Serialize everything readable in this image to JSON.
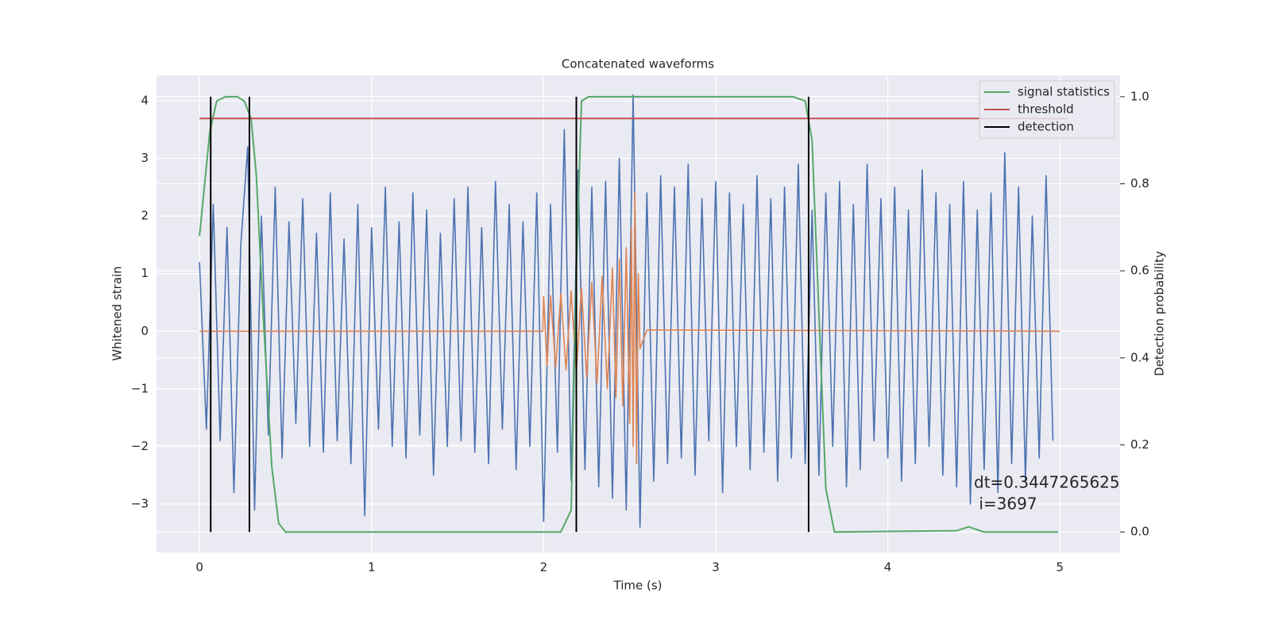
{
  "chart_data": {
    "type": "line",
    "title": "Concatenated waveforms",
    "xlabel": "Time (s)",
    "ylabel": "Whitened strain",
    "y2label": "Detection probability",
    "xlim": [
      -0.25,
      5.35
    ],
    "ylim": [
      -3.84,
      4.44
    ],
    "y2lim": [
      -0.047,
      1.049
    ],
    "xticks": [
      0,
      1,
      2,
      3,
      4,
      5
    ],
    "yticks": [
      {
        "value": -3,
        "label": "−3"
      },
      {
        "value": -2,
        "label": "−2"
      },
      {
        "value": -1,
        "label": "−1"
      },
      0,
      1,
      2,
      3,
      4
    ],
    "y2ticks": [
      {
        "value": 0,
        "label": "0.0"
      },
      {
        "value": 0.2,
        "label": "0.2"
      },
      {
        "value": 0.4,
        "label": "0.4"
      },
      {
        "value": 0.6,
        "label": "0.6"
      },
      {
        "value": 0.8,
        "label": "0.8"
      },
      {
        "value": 1.0,
        "label": "1.0"
      }
    ],
    "grid": true,
    "legend": "upper right",
    "series": [
      {
        "color": "#4c72b0",
        "x": [
          0,
          0.04,
          0.08,
          0.12,
          0.16,
          0.2,
          0.24,
          0.28,
          0.32,
          0.36,
          0.4,
          0.44,
          0.48,
          0.52,
          0.56,
          0.6,
          0.64,
          0.68,
          0.72,
          0.76,
          0.8,
          0.84,
          0.88,
          0.92,
          0.96,
          1.0,
          1.04,
          1.08,
          1.12,
          1.16,
          1.2,
          1.24,
          1.28,
          1.32,
          1.36,
          1.4,
          1.44,
          1.48,
          1.52,
          1.56,
          1.6,
          1.64,
          1.68,
          1.72,
          1.76,
          1.8,
          1.84,
          1.88,
          1.92,
          1.96,
          2.0,
          2.04,
          2.08,
          2.12,
          2.16,
          2.2,
          2.24,
          2.28,
          2.32,
          2.36,
          2.4,
          2.44,
          2.48,
          2.52,
          2.56,
          2.6,
          2.64,
          2.68,
          2.72,
          2.76,
          2.8,
          2.84,
          2.88,
          2.92,
          2.96,
          3.0,
          3.04,
          3.08,
          3.12,
          3.16,
          3.2,
          3.24,
          3.28,
          3.32,
          3.36,
          3.4,
          3.44,
          3.48,
          3.52,
          3.56,
          3.6,
          3.64,
          3.68,
          3.72,
          3.76,
          3.8,
          3.84,
          3.88,
          3.92,
          3.96,
          4.0,
          4.04,
          4.08,
          4.12,
          4.16,
          4.2,
          4.24,
          4.28,
          4.32,
          4.36,
          4.4,
          4.44,
          4.48,
          4.52,
          4.56,
          4.6,
          4.64,
          4.68,
          4.72,
          4.76,
          4.8,
          4.84,
          4.88,
          4.92,
          4.96
        ],
        "values": [
          1.2,
          -1.7,
          2.2,
          -1.9,
          1.8,
          -2.8,
          1.5,
          3.2,
          -3.1,
          2.0,
          -1.8,
          2.5,
          -2.2,
          1.9,
          -1.6,
          2.3,
          -2.0,
          1.7,
          -2.1,
          2.4,
          -1.9,
          1.6,
          -2.3,
          2.2,
          -3.2,
          1.8,
          -1.7,
          2.5,
          -2.0,
          1.9,
          -2.2,
          2.4,
          -1.8,
          2.1,
          -2.5,
          1.7,
          -2.0,
          2.3,
          -1.9,
          2.5,
          -2.1,
          1.8,
          -2.3,
          2.6,
          -1.7,
          2.2,
          -2.4,
          1.9,
          -2.0,
          2.4,
          -3.3,
          2.2,
          -2.1,
          3.5,
          -2.6,
          2.8,
          -2.4,
          2.5,
          -2.7,
          2.6,
          -2.9,
          3.0,
          -3.1,
          4.1,
          -3.4,
          2.4,
          -2.6,
          2.7,
          -2.3,
          2.5,
          -2.2,
          2.9,
          -2.5,
          2.3,
          -1.9,
          2.6,
          -2.8,
          2.4,
          -2.0,
          2.2,
          -2.4,
          2.7,
          -2.1,
          2.3,
          -2.6,
          2.5,
          -2.2,
          2.9,
          -2.3,
          2.1,
          -2.5,
          2.4,
          -2.0,
          2.6,
          -2.7,
          2.2,
          -2.4,
          2.9,
          -1.9,
          2.3,
          -2.2,
          2.5,
          -2.6,
          2.1,
          -2.3,
          2.8,
          -2.0,
          2.4,
          -2.5,
          2.2,
          -2.7,
          2.6,
          -3.0,
          2.1,
          -2.4,
          2.4,
          -2.8,
          3.1,
          -2.3,
          2.5,
          -2.6,
          2.0,
          -2.2,
          2.7,
          -1.9
        ]
      },
      {
        "color": "#dd8452",
        "x": [
          0,
          1.995,
          2.0,
          2.02,
          2.04,
          2.07,
          2.1,
          2.13,
          2.16,
          2.19,
          2.22,
          2.25,
          2.28,
          2.31,
          2.34,
          2.37,
          2.4,
          2.42,
          2.44,
          2.46,
          2.48,
          2.5,
          2.51,
          2.52,
          2.53,
          2.54,
          2.55,
          2.56,
          2.6,
          5.0
        ],
        "values": [
          0,
          0,
          0.6,
          -0.6,
          0.62,
          -0.63,
          0.65,
          -0.67,
          0.7,
          -0.72,
          0.75,
          -0.8,
          0.85,
          -0.9,
          0.95,
          -1.0,
          1.1,
          -1.15,
          1.25,
          -1.3,
          1.45,
          -1.6,
          1.8,
          -2.0,
          2.4,
          -2.3,
          1.0,
          -0.3,
          0.02,
          0
        ]
      },
      {
        "name": "signal statistics",
        "color": "#55a868",
        "axis": "y2",
        "x": [
          0,
          0.03,
          0.06,
          0.1,
          0.15,
          0.22,
          0.26,
          0.3,
          0.33,
          0.37,
          0.42,
          0.46,
          0.5,
          2.1,
          2.16,
          2.19,
          2.22,
          2.26,
          3.45,
          3.52,
          3.56,
          3.6,
          3.64,
          3.69,
          4.4,
          4.47,
          4.52,
          4.56,
          4.99
        ],
        "values": [
          0.68,
          0.8,
          0.92,
          0.99,
          1.0,
          1.0,
          0.99,
          0.95,
          0.82,
          0.5,
          0.15,
          0.02,
          0,
          0,
          0.05,
          0.6,
          0.99,
          1.0,
          1.0,
          0.99,
          0.9,
          0.5,
          0.1,
          0,
          0.003,
          0.012,
          0.005,
          0,
          0
        ]
      },
      {
        "name": "threshold",
        "color": "#c44e52",
        "axis": "y2",
        "x": [
          0,
          5.05
        ],
        "values": [
          0.95,
          0.95
        ]
      }
    ],
    "detections": {
      "name": "detection",
      "color": "#000000",
      "axis": "y2",
      "x": [
        0.065,
        0.29,
        2.19,
        3.54
      ],
      "ymin": 0,
      "ymax": 1.0
    },
    "annotation": [
      "dt=0.3447265625",
      " i=3697"
    ]
  }
}
